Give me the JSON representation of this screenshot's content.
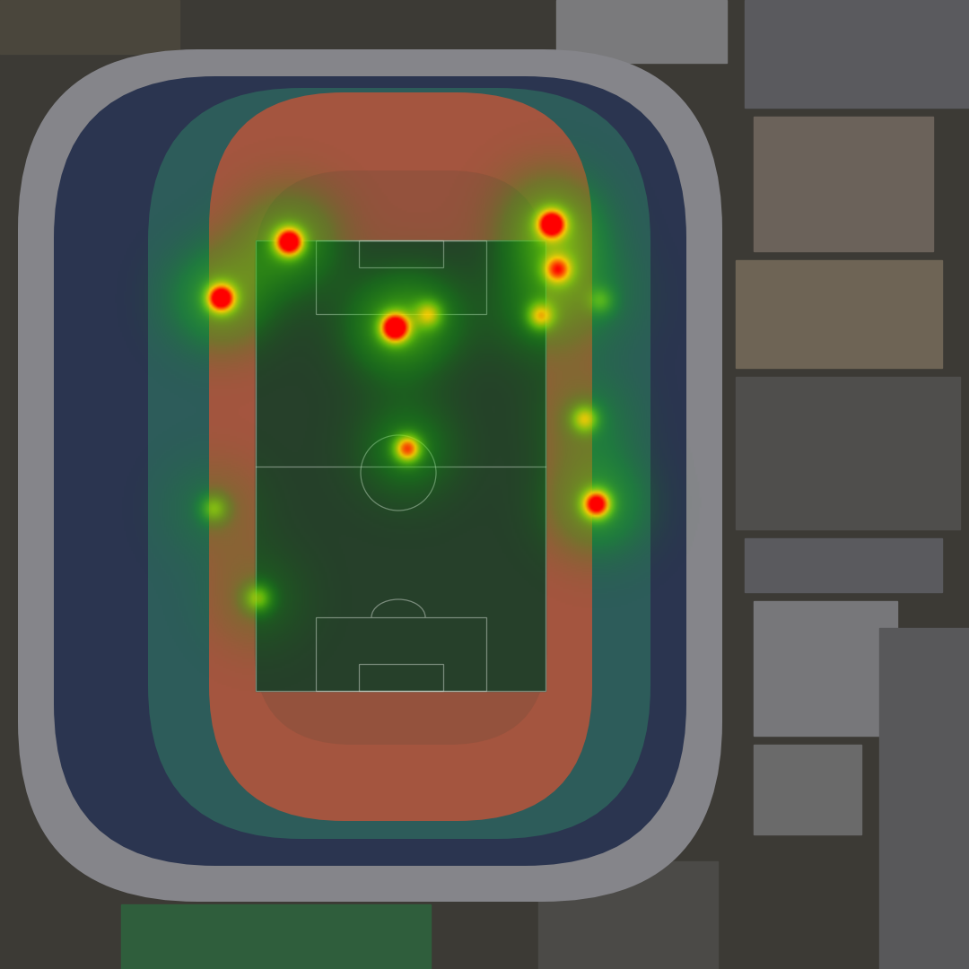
{
  "chart_data": {
    "type": "heatmap",
    "xlim": [
      0,
      1080
    ],
    "ylim": [
      1080,
      0
    ],
    "tick_labels": false,
    "points": {
      "x": [
        322,
        615,
        246,
        440,
        622,
        478,
        603,
        652,
        454,
        665,
        238,
        287,
        670
      ],
      "y": [
        269,
        249,
        332,
        365,
        300,
        350,
        352,
        467,
        500,
        562,
        567,
        667,
        335
      ],
      "intensity": [
        1.0,
        1.0,
        1.0,
        1.0,
        0.6,
        0.4,
        0.5,
        0.5,
        0.7,
        0.9,
        0.35,
        0.4,
        0.25
      ]
    },
    "color_range": [
      0,
      1
    ]
  }
}
